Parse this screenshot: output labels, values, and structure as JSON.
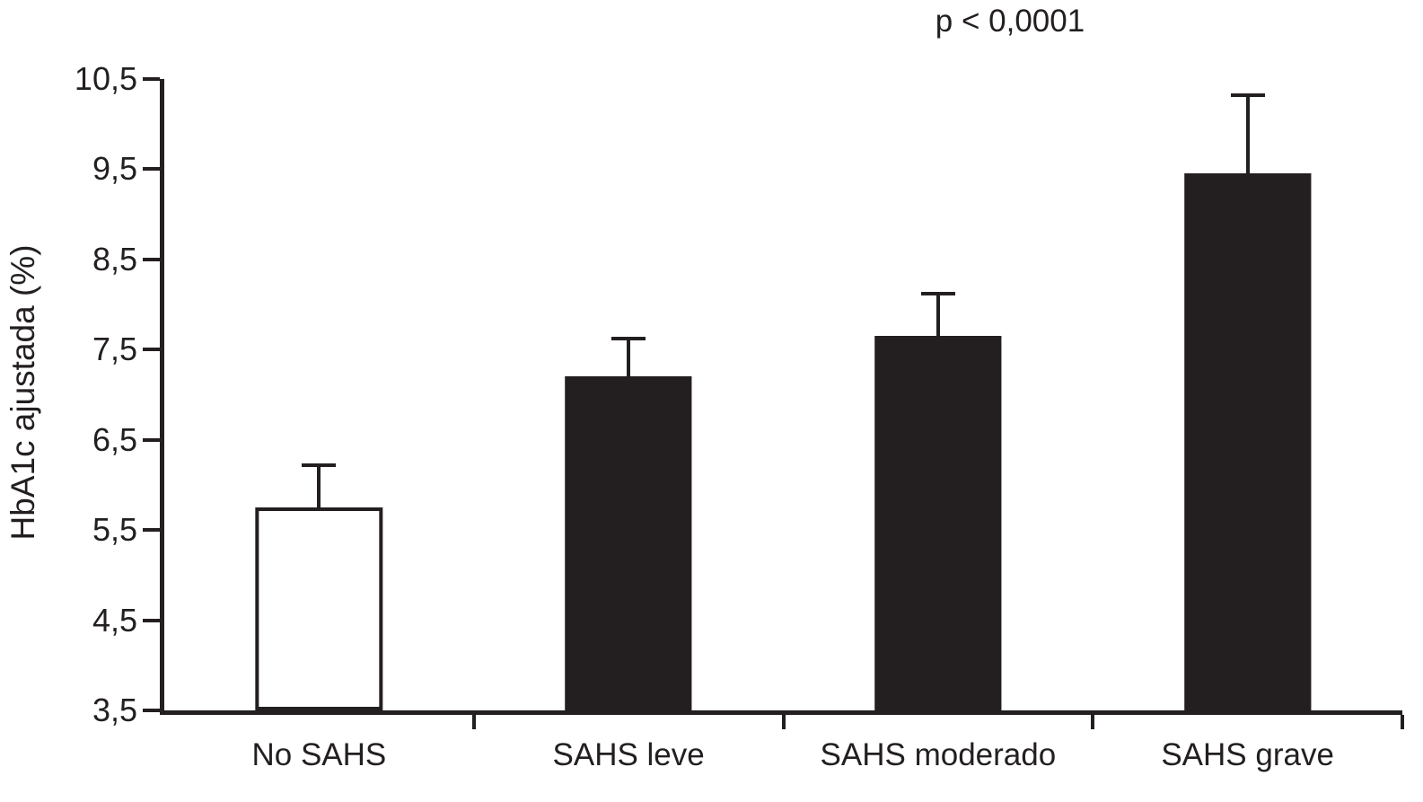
{
  "chart_data": {
    "type": "bar",
    "title": "",
    "annotation": "p < 0,0001",
    "xlabel": "",
    "ylabel": "HbA1c ajustada (%)",
    "categories": [
      "No SAHS",
      "SAHS leve",
      "SAHS moderado",
      "SAHS grave"
    ],
    "values": [
      5.75,
      7.2,
      7.65,
      9.45
    ],
    "errors": [
      0.45,
      0.4,
      0.45,
      0.85
    ],
    "bar_colors": [
      "#ffffff",
      "#231f20",
      "#231f20",
      "#231f20"
    ],
    "bar_border_color": "#231f20",
    "ylim": [
      3.5,
      10.5
    ],
    "ytick_step": 1.0,
    "ytick_labels": [
      "3,5",
      "4,5",
      "5,5",
      "6,5",
      "7,5",
      "8,5",
      "9,5",
      "10,5"
    ],
    "grid": false,
    "legend": null
  }
}
